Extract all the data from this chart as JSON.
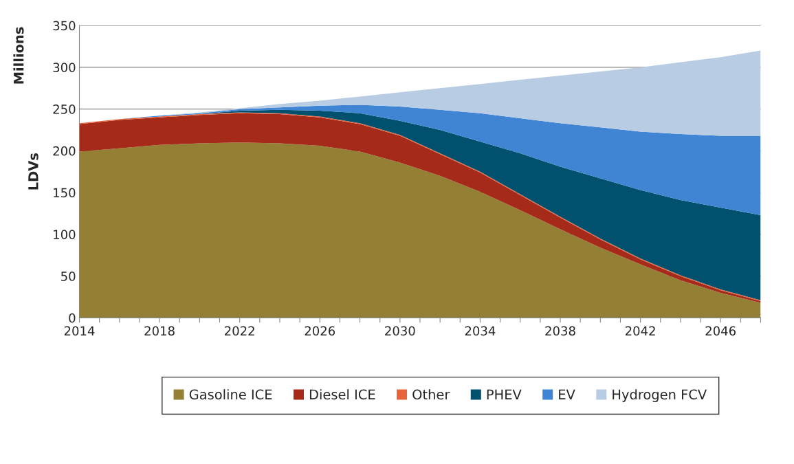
{
  "chart_data": {
    "type": "area",
    "stacked": true,
    "ylabel": "LDVs",
    "annotations": [
      "Millions"
    ],
    "x": [
      2014,
      2016,
      2018,
      2020,
      2022,
      2024,
      2026,
      2028,
      2030,
      2032,
      2034,
      2036,
      2038,
      2040,
      2042,
      2044,
      2046,
      2048
    ],
    "series": [
      {
        "name": "Gasoline ICE",
        "color": "#948035",
        "values": [
          199,
          203,
          207,
          209,
          210,
          209,
          206,
          199,
          186,
          170,
          151,
          129,
          106,
          84,
          64,
          45,
          30,
          18
        ]
      },
      {
        "name": "Diesel ICE",
        "color": "#a52a1a",
        "values": [
          33,
          34,
          33,
          34,
          35,
          35,
          34,
          33,
          32,
          26,
          23,
          18,
          14,
          10,
          6,
          5,
          3,
          2
        ]
      },
      {
        "name": "Other",
        "color": "#e8643a",
        "values": [
          1,
          1,
          1,
          1,
          1,
          1,
          1,
          1,
          1,
          1,
          1,
          1,
          1,
          1,
          1,
          1,
          1,
          1
        ]
      },
      {
        "name": "PHEV",
        "color": "#00506e",
        "values": [
          0,
          0,
          0,
          0,
          2,
          4,
          7,
          12,
          17,
          28,
          36,
          49,
          60,
          72,
          82,
          90,
          98,
          102
        ]
      },
      {
        "name": "EV",
        "color": "#3f85d4",
        "values": [
          0,
          0,
          1,
          1,
          2,
          3,
          6,
          10,
          17,
          24,
          34,
          42,
          52,
          61,
          70,
          79,
          86,
          95
        ]
      },
      {
        "name": "Hydrogen FCV",
        "color": "#b8cce4",
        "values": [
          0,
          0,
          0,
          1,
          1,
          4,
          6,
          10,
          17,
          26,
          35,
          46,
          57,
          67,
          77,
          86,
          94,
          102
        ]
      }
    ],
    "xlim": [
      2014,
      2048
    ],
    "xticks": [
      2014,
      {
        "value": 2015,
        "label": null
      },
      {
        "value": 2016,
        "label": null
      },
      {
        "value": 2017,
        "label": null
      },
      2018,
      {
        "value": 2019,
        "label": null
      },
      {
        "value": 2020,
        "label": null
      },
      {
        "value": 2021,
        "label": null
      },
      2022,
      {
        "value": 2023,
        "label": null
      },
      {
        "value": 2024,
        "label": null
      },
      {
        "value": 2025,
        "label": null
      },
      2026,
      {
        "value": 2027,
        "label": null
      },
      {
        "value": 2028,
        "label": null
      },
      {
        "value": 2029,
        "label": null
      },
      2030,
      {
        "value": 2031,
        "label": null
      },
      {
        "value": 2032,
        "label": null
      },
      {
        "value": 2033,
        "label": null
      },
      2034,
      {
        "value": 2035,
        "label": null
      },
      {
        "value": 2036,
        "label": null
      },
      {
        "value": 2037,
        "label": null
      },
      2038,
      {
        "value": 2039,
        "label": null
      },
      {
        "value": 2040,
        "label": null
      },
      {
        "value": 2041,
        "label": null
      },
      2042,
      {
        "value": 2043,
        "label": null
      },
      {
        "value": 2044,
        "label": null
      },
      {
        "value": 2045,
        "label": null
      },
      2046,
      {
        "value": 2047,
        "label": null
      },
      {
        "value": 2048,
        "label": null
      }
    ],
    "ylim": [
      0,
      350
    ],
    "yticks": [
      0,
      50,
      100,
      150,
      200,
      250,
      300,
      350
    ],
    "grid": "y",
    "legend": "bottom"
  }
}
